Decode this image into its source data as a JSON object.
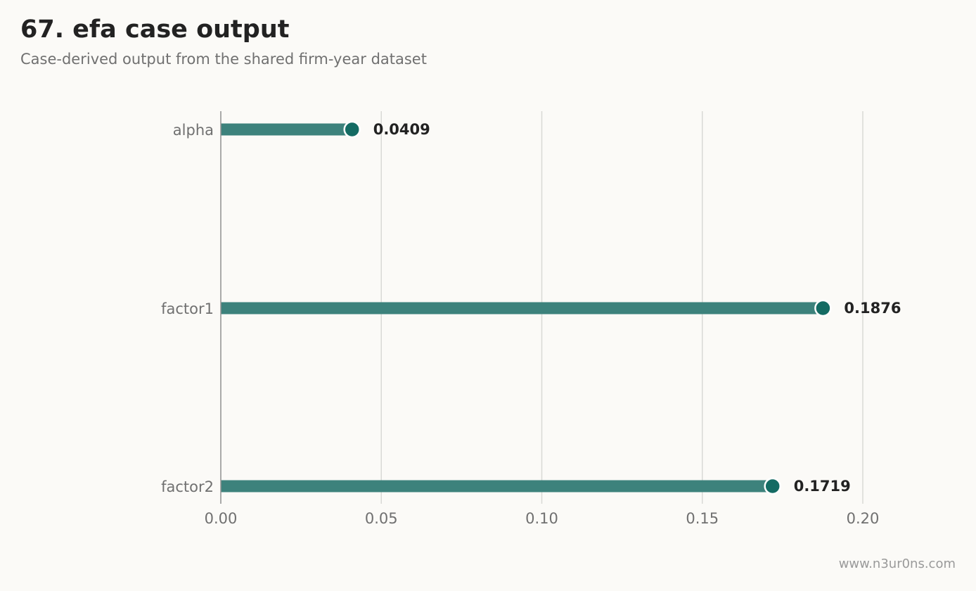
{
  "header": {
    "title": "67. efa case output",
    "subtitle": "Case-derived output from the shared firm-year dataset"
  },
  "footer": {
    "watermark": "www.n3ur0ns.com"
  },
  "colors": {
    "background": "#fbfaf7",
    "bar": "#3d827c",
    "dot": "#146b63",
    "grid": "#d9d9d6",
    "axis": "#8f8f8f",
    "text_dark": "#222222",
    "text_muted": "#707070"
  },
  "chart_data": {
    "type": "bar",
    "orientation": "horizontal",
    "style": "lollipop",
    "title": "67. efa case output",
    "subtitle": "Case-derived output from the shared firm-year dataset",
    "categories": [
      "alpha",
      "factor1",
      "factor2"
    ],
    "values": [
      0.0409,
      0.1876,
      0.1719
    ],
    "value_labels": [
      "0.0409",
      "0.1876",
      "0.1719"
    ],
    "xlim": [
      0,
      0.2
    ],
    "xticks": [
      0.0,
      0.05,
      0.1,
      0.15,
      0.2
    ],
    "xtick_labels": [
      "0.00",
      "0.05",
      "0.10",
      "0.15",
      "0.20"
    ],
    "xlabel": "",
    "ylabel": "",
    "grid": "vertical"
  }
}
